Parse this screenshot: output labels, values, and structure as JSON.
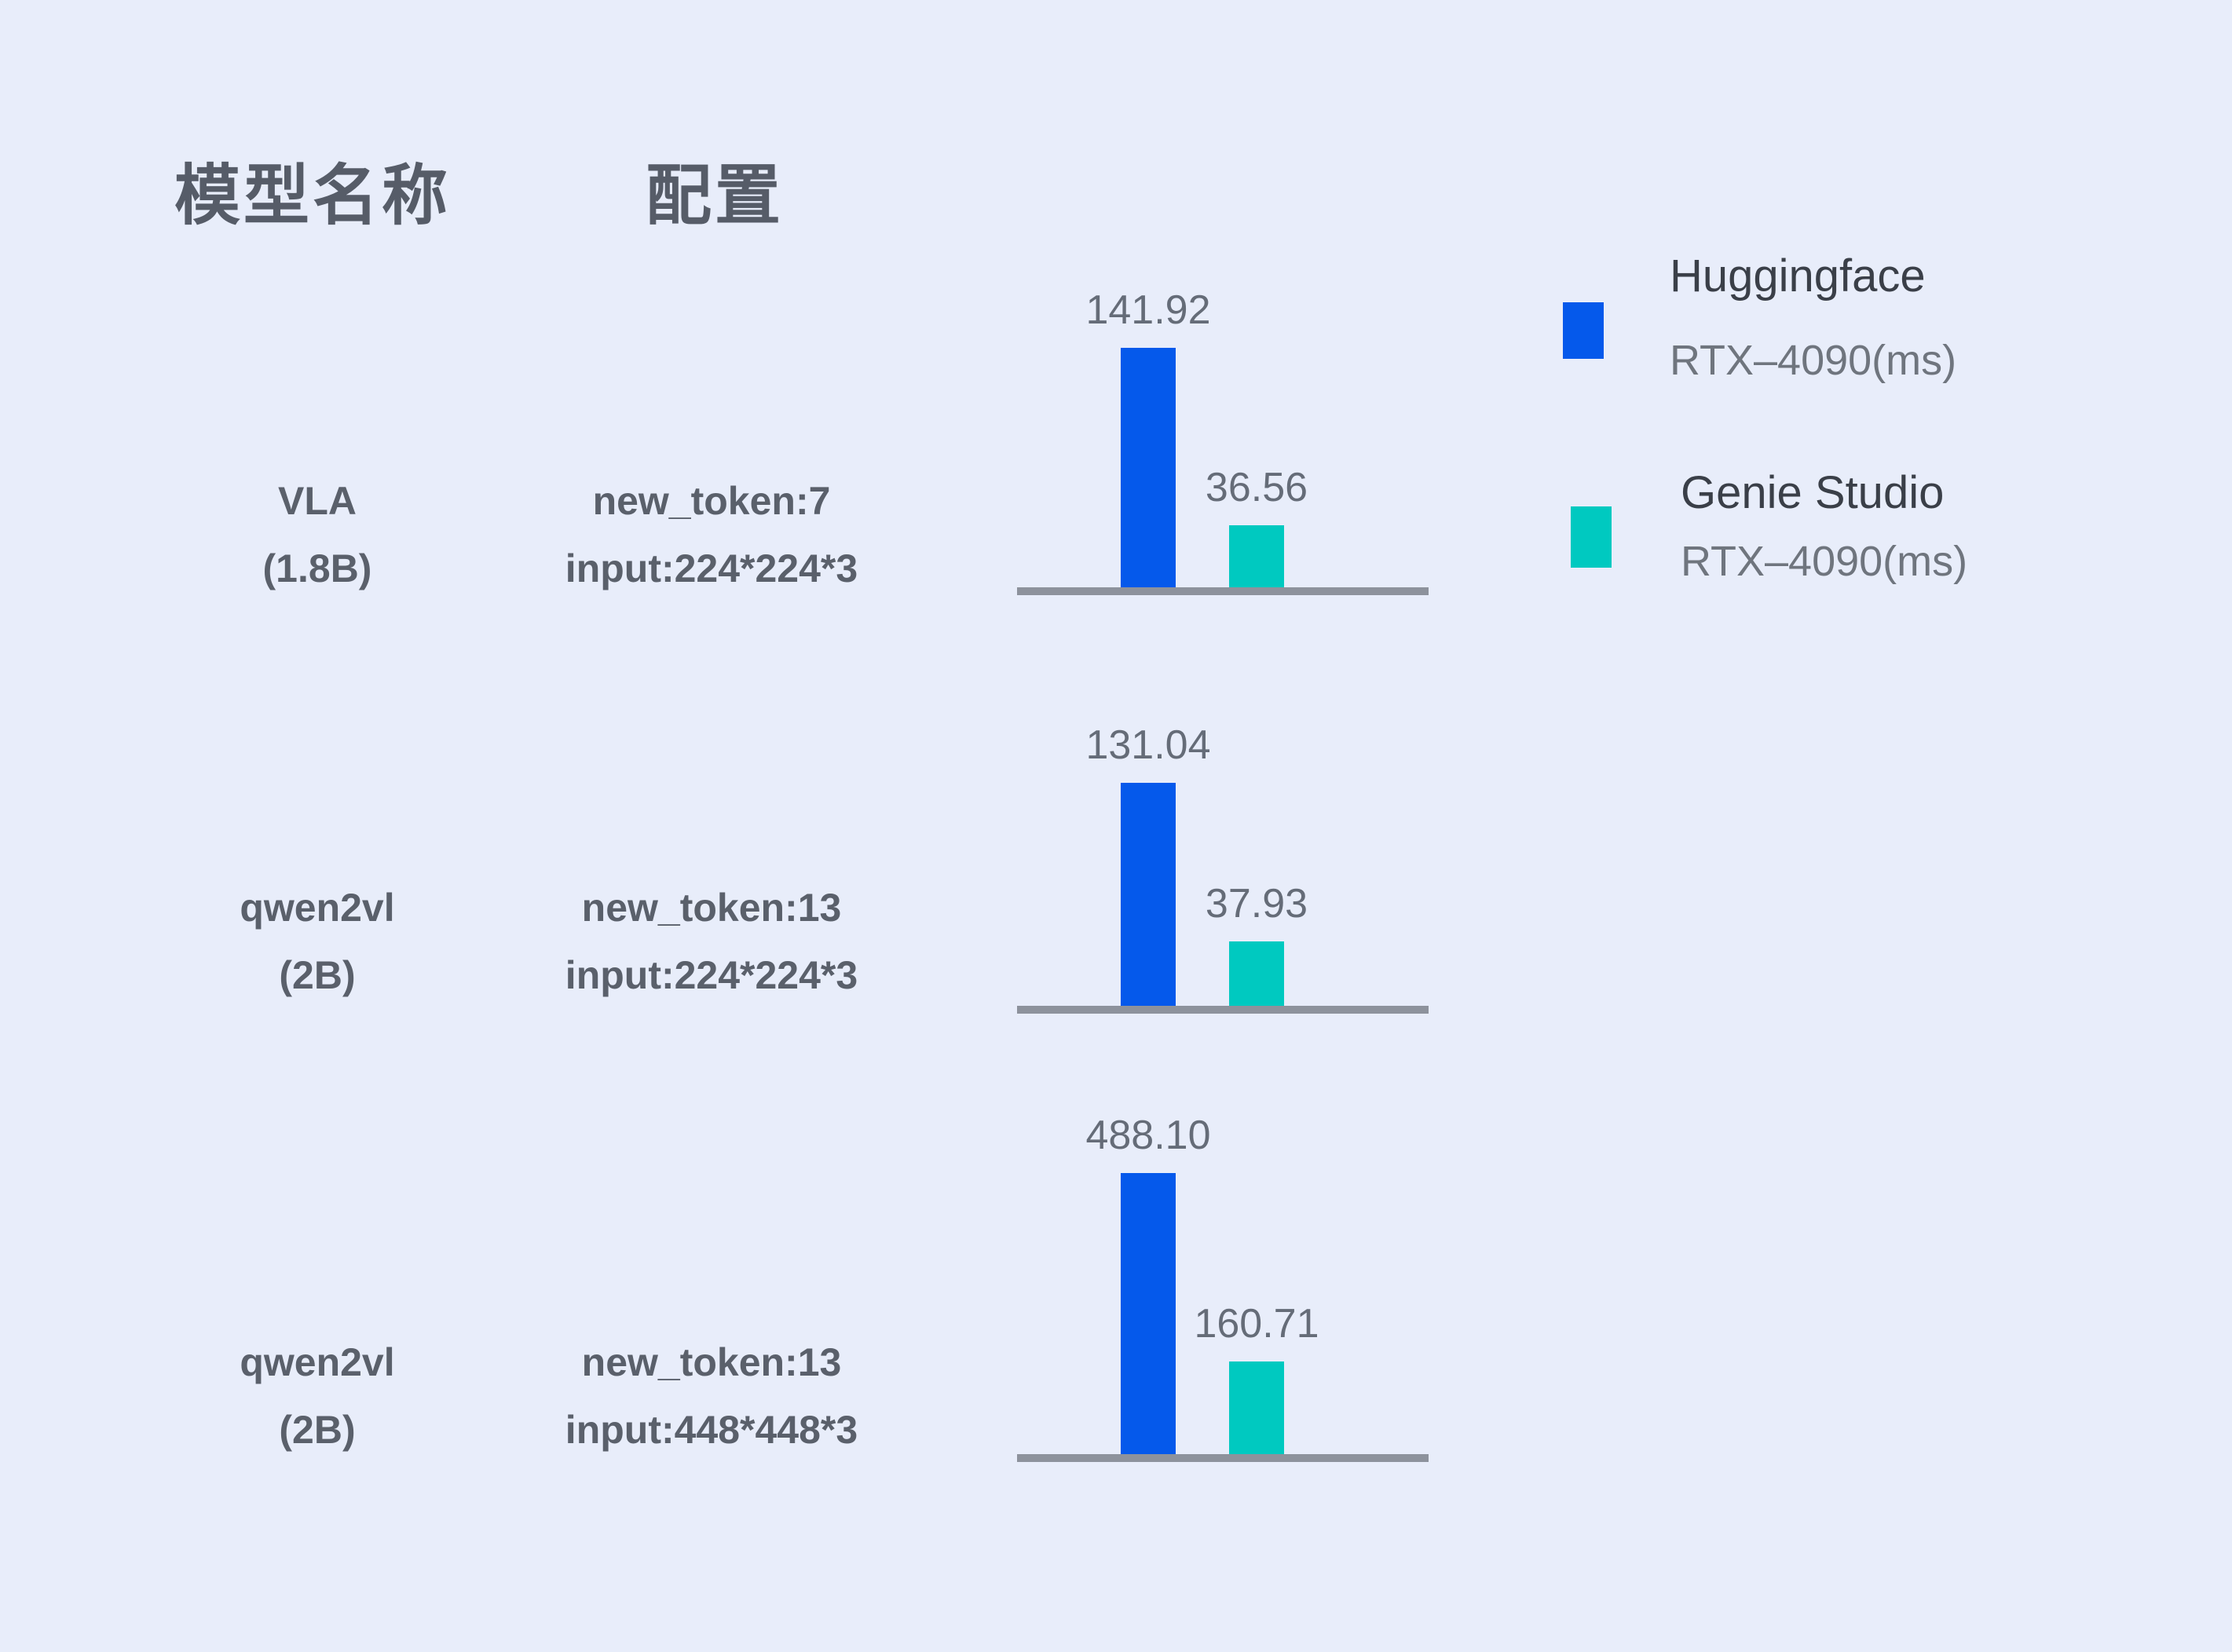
{
  "page": {
    "background_color": "#E8EDFA"
  },
  "table": {
    "headers": {
      "model": "模型名称",
      "config": "配置"
    }
  },
  "legend": [
    {
      "name": "Huggingface",
      "device": "RTX–4090(ms)",
      "color": "#0559EB"
    },
    {
      "name": "Genie Studio",
      "device": "RTX–4090(ms)",
      "color": "#00C9C0"
    }
  ],
  "chart_data": {
    "type": "bar",
    "unit": "ms",
    "legend_position": "top-right",
    "grid": false,
    "series_names": [
      "Huggingface RTX–4090(ms)",
      "Genie Studio RTX–4090(ms)"
    ],
    "colors": {
      "huggingface": "#0559EB",
      "genie": "#00C9C0",
      "baseline": "#8D929C"
    },
    "rows": [
      {
        "model": "VLA",
        "size": "(1.8B)",
        "config_line1": "new_token:7",
        "config_line2": "input:224*224*3",
        "huggingface_ms": 141.92,
        "genie_ms": 36.56,
        "labels": [
          "141.92",
          "36.56"
        ]
      },
      {
        "model": "qwen2vl",
        "size": "(2B)",
        "config_line1": "new_token:13",
        "config_line2": "input:224*224*3",
        "huggingface_ms": 131.04,
        "genie_ms": 37.93,
        "labels": [
          "131.04",
          "37.93"
        ]
      },
      {
        "model": "qwen2vl",
        "size": "(2B)",
        "config_line1": "new_token:13",
        "config_line2": "input:448*448*3",
        "huggingface_ms": 488.1,
        "genie_ms": 160.71,
        "labels": [
          "488.10",
          "160.71"
        ]
      }
    ]
  }
}
